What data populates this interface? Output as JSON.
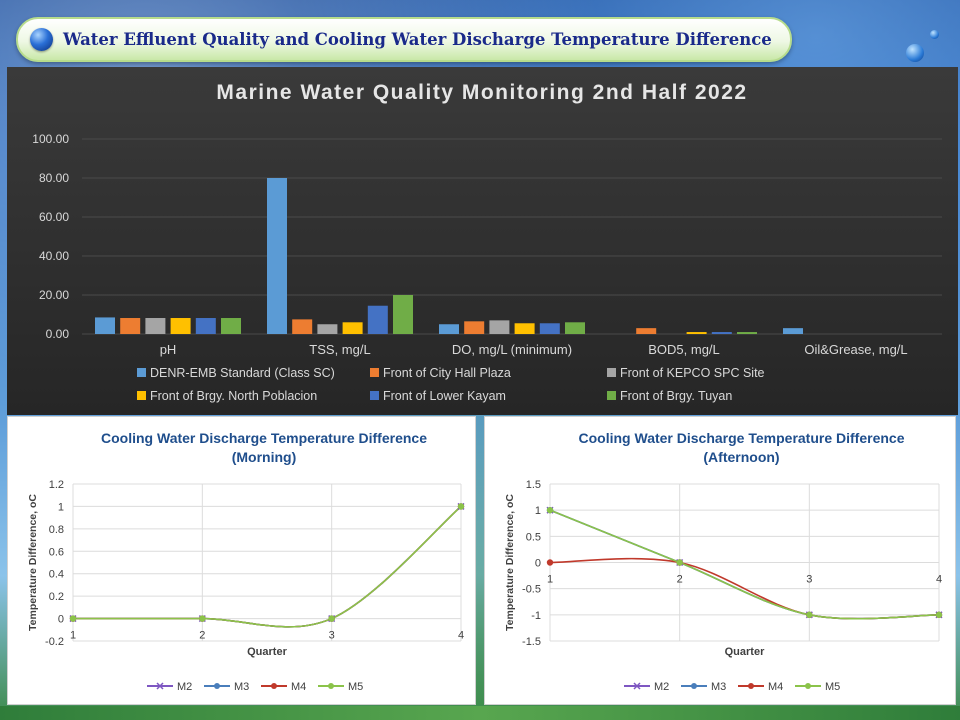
{
  "slide": {
    "title": "Water Effluent Quality and Cooling Water Discharge Temperature Difference"
  },
  "chart_data": [
    {
      "type": "bar",
      "title": "Marine Water Quality Monitoring 2nd Half 2022",
      "categories": [
        "pH",
        "TSS, mg/L",
        "DO, mg/L (minimum)",
        "BOD5, mg/L",
        "Oil&Grease, mg/L"
      ],
      "ylim": [
        0,
        100
      ],
      "yticks": [
        "0.00",
        "20.00",
        "40.00",
        "60.00",
        "80.00",
        "100.00"
      ],
      "grid": true,
      "legend_position": "bottom",
      "series": [
        {
          "name": "DENR-EMB Standard (Class SC)",
          "color": "#5b9bd5",
          "values": [
            8.5,
            80,
            5,
            0,
            3
          ]
        },
        {
          "name": "Front of City Hall Plaza",
          "color": "#ed7d31",
          "values": [
            8.2,
            7.5,
            6.5,
            3,
            0
          ]
        },
        {
          "name": "Front of KEPCO SPC Site",
          "color": "#a5a5a5",
          "values": [
            8.2,
            5,
            7,
            0,
            0
          ]
        },
        {
          "name": "Front of Brgy. North Poblacion",
          "color": "#ffc000",
          "values": [
            8.2,
            6,
            5.5,
            1,
            0
          ]
        },
        {
          "name": "Front of Lower Kayam",
          "color": "#4472c4",
          "values": [
            8.2,
            14.5,
            5.5,
            1,
            0
          ]
        },
        {
          "name": "Front of Brgy. Tuyan",
          "color": "#70ad47",
          "values": [
            8.2,
            20,
            6,
            1,
            0
          ]
        }
      ]
    },
    {
      "type": "line",
      "title": "Cooling Water Discharge Temperature Difference",
      "subtitle": "(Morning)",
      "xlabel": "Quarter",
      "ylabel": "Temperature Difference, oC",
      "x": [
        1,
        2,
        3,
        4
      ],
      "xticks": [
        "1",
        "2",
        "3",
        "4"
      ],
      "ylim": [
        -0.2,
        1.2
      ],
      "yticks": [
        "-0.2",
        "0",
        "0.2",
        "0.4",
        "0.6",
        "0.8",
        "1",
        "1.2"
      ],
      "grid": true,
      "legend_position": "bottom",
      "series": [
        {
          "name": "M2",
          "color": "#7e57c2",
          "marker": "x",
          "values": [
            0,
            0,
            0,
            1
          ]
        },
        {
          "name": "M3",
          "color": "#4a7ebb",
          "marker": "circle",
          "values": [
            0,
            0,
            0,
            1
          ]
        },
        {
          "name": "M4",
          "color": "#c0392b",
          "marker": "circle",
          "values": [
            0,
            0,
            0,
            1
          ]
        },
        {
          "name": "M5",
          "color": "#8bc34a",
          "marker": "circle",
          "values": [
            0,
            0,
            0,
            1
          ]
        }
      ]
    },
    {
      "type": "line",
      "title": "Cooling Water Discharge Temperature Difference",
      "subtitle": "(Afternoon)",
      "xlabel": "Quarter",
      "ylabel": "Temperature Difference, oC",
      "x": [
        1,
        2,
        3,
        4
      ],
      "xticks": [
        "1",
        "2",
        "3",
        "4"
      ],
      "ylim": [
        -1.5,
        1.5
      ],
      "yticks": [
        "-1.5",
        "-1",
        "-0.5",
        "0",
        "0.5",
        "1",
        "1.5"
      ],
      "grid": true,
      "legend_position": "bottom",
      "series": [
        {
          "name": "M2",
          "color": "#7e57c2",
          "marker": "x",
          "values": [
            1,
            0,
            -1,
            -1
          ]
        },
        {
          "name": "M3",
          "color": "#4a7ebb",
          "marker": "circle",
          "values": [
            1,
            0,
            -1,
            -1
          ]
        },
        {
          "name": "M4",
          "color": "#c0392b",
          "marker": "circle",
          "values": [
            0,
            0,
            -1,
            -1
          ]
        },
        {
          "name": "M5",
          "color": "#8bc34a",
          "marker": "circle",
          "values": [
            1,
            0,
            -1,
            -1
          ]
        }
      ]
    }
  ]
}
